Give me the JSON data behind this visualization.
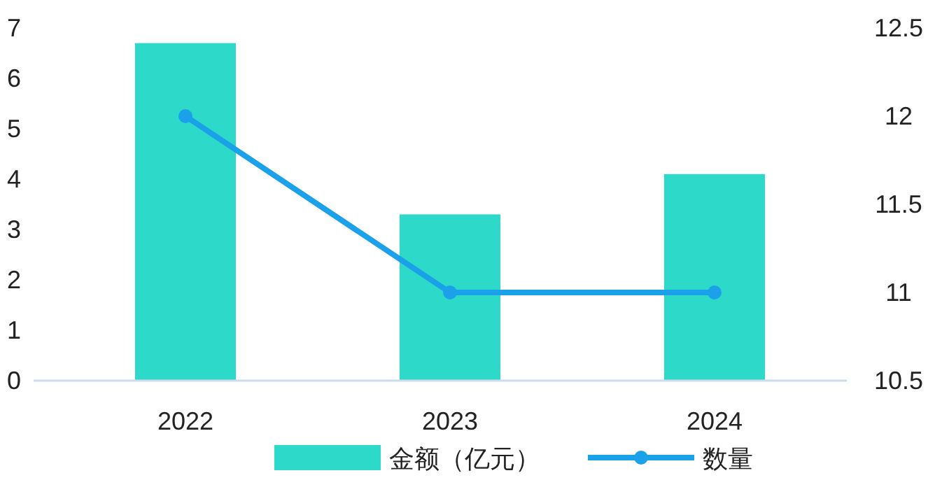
{
  "chart_data": {
    "type": "bar",
    "categories": [
      "2022",
      "2023",
      "2024"
    ],
    "series": [
      {
        "name": "金额（亿元）",
        "color": "#2dd9c9",
        "values": [
          6.7,
          3.3,
          4.1
        ]
      },
      {
        "name": "数量",
        "type": "line",
        "axis": "y2",
        "color": "#1ba1ea",
        "values": [
          12,
          11,
          11
        ]
      }
    ],
    "ylim": [
      0,
      7
    ],
    "yticks": [
      0,
      1,
      2,
      3,
      4,
      5,
      6,
      7
    ],
    "y2lim": [
      10.5,
      12.5
    ],
    "y2ticks": [
      10.5,
      11,
      11.5,
      12,
      12.5
    ],
    "legend": "bottom",
    "marker": "circle",
    "line_style": "solid",
    "grid": false
  }
}
